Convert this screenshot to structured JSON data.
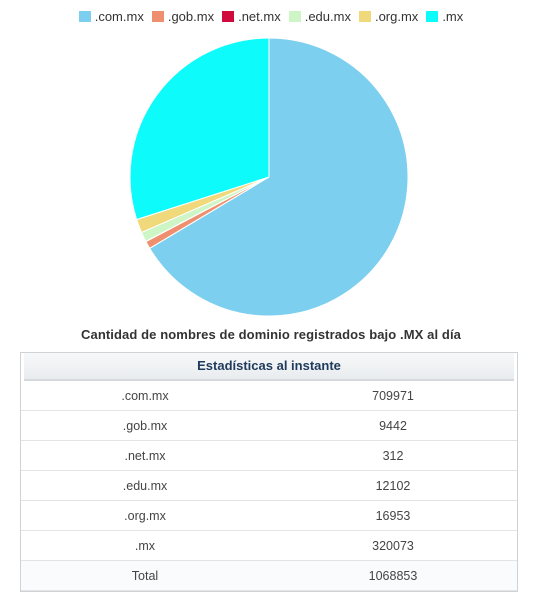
{
  "chart_data": {
    "type": "pie",
    "title": "Cantidad de nombres de dominio registrados bajo .MX al día",
    "legend_position": "top",
    "categories": [
      ".com.mx",
      ".gob.mx",
      ".net.mx",
      ".edu.mx",
      ".org.mx",
      ".mx"
    ],
    "values": [
      709971,
      9442,
      312,
      12102,
      16953,
      320073
    ],
    "colors": [
      "#7ccfee",
      "#ee9070",
      "#d10a3e",
      "#cdf5c6",
      "#f0d97a",
      "#0dfbfb"
    ]
  },
  "stats": {
    "header": "Estadísticas al instante",
    "rows": [
      {
        "name": ".com.mx",
        "value": "709971"
      },
      {
        "name": ".gob.mx",
        "value": "9442"
      },
      {
        "name": ".net.mx",
        "value": "312"
      },
      {
        "name": ".edu.mx",
        "value": "12102"
      },
      {
        "name": ".org.mx",
        "value": "16953"
      },
      {
        "name": ".mx",
        "value": "320073"
      },
      {
        "name": "Total",
        "value": "1068853"
      }
    ]
  }
}
